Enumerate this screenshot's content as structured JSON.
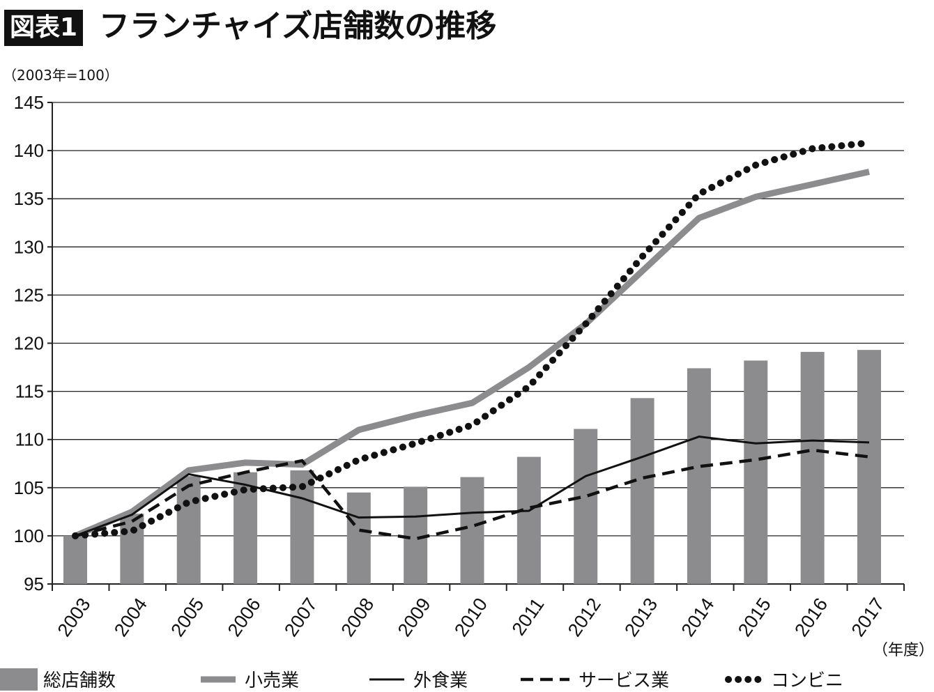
{
  "title_badge": "図表1",
  "title": "フランチャイズ店舗数の推移",
  "unit_label": "（2003年=100）",
  "x_unit_label": "（年度）",
  "chart_data": {
    "type": "bar+line",
    "categories": [
      "2003",
      "2004",
      "2005",
      "2006",
      "2007",
      "2008",
      "2009",
      "2010",
      "2011",
      "2012",
      "2013",
      "2014",
      "2015",
      "2016",
      "2017"
    ],
    "ylim": [
      95,
      145
    ],
    "yticks": [
      95,
      100,
      105,
      110,
      115,
      120,
      125,
      130,
      135,
      140,
      145
    ],
    "grid": true,
    "legend_position": "bottom",
    "series": [
      {
        "name": "総店舗数",
        "type": "bar",
        "color": "#8c8c8e",
        "values": [
          100,
          102.3,
          106.2,
          106.6,
          106.8,
          104.5,
          105.1,
          106.1,
          108.2,
          111.1,
          114.3,
          117.4,
          118.2,
          119.1,
          119.3
        ]
      },
      {
        "name": "小売業",
        "type": "line",
        "style": "thick-gray",
        "color": "#8c8c8e",
        "values": [
          100,
          102.5,
          106.8,
          107.6,
          107.4,
          111,
          112.5,
          113.8,
          117.5,
          122,
          127.5,
          133,
          135.2,
          136.5,
          137.8
        ]
      },
      {
        "name": "外食業",
        "type": "line",
        "style": "solid",
        "color": "#111111",
        "values": [
          100,
          102.2,
          106.4,
          105.3,
          103.9,
          101.9,
          102,
          102.4,
          102.6,
          106.2,
          108.2,
          110.3,
          109.6,
          109.9,
          109.7
        ]
      },
      {
        "name": "サービス業",
        "type": "line",
        "style": "dashed",
        "color": "#111111",
        "values": [
          100,
          101.5,
          105.2,
          106.6,
          107.8,
          100.6,
          99.7,
          101,
          102.9,
          104.1,
          106,
          107.2,
          107.9,
          108.9,
          108.2
        ]
      },
      {
        "name": "コンビニ",
        "type": "line",
        "style": "dotted",
        "color": "#111111",
        "values": [
          100,
          100.5,
          103.5,
          104.8,
          105.1,
          107.9,
          109.6,
          111.5,
          115.5,
          122,
          129,
          135.5,
          138.5,
          140.2,
          140.8
        ]
      }
    ]
  }
}
